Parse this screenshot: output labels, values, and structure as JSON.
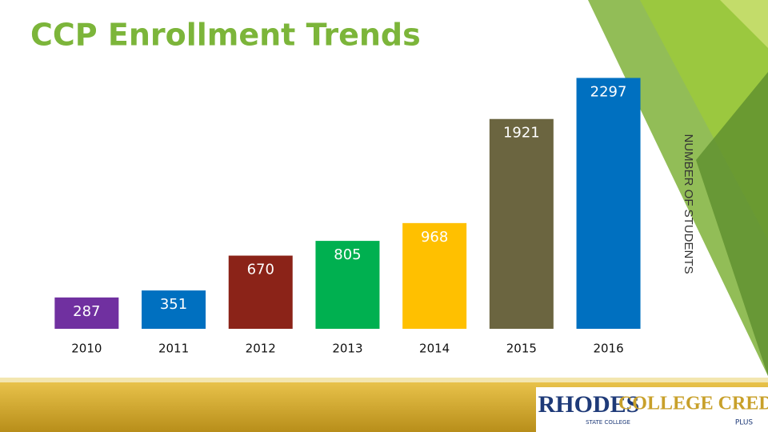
{
  "chart_data": {
    "type": "bar",
    "title": "CCP Enrollment Trends",
    "y_label": "NUMBER OF STUDENTS",
    "categories": [
      "2010",
      "2011",
      "2012",
      "2013",
      "2014",
      "2015",
      "2016"
    ],
    "values": [
      287,
      351,
      670,
      805,
      968,
      1921,
      2297
    ],
    "colors": [
      "#7030a0",
      "#0070c0",
      "#8b2318",
      "#00b050",
      "#ffc000",
      "#6b6540",
      "#0070c0"
    ],
    "ylim": [
      0,
      2300
    ]
  },
  "logos": {
    "rhodes": "RHODES",
    "rhodes_sub": "STATE COLLEGE",
    "ccp": "COLLEGE CREDIT",
    "ccp_sub": "PLUS"
  }
}
